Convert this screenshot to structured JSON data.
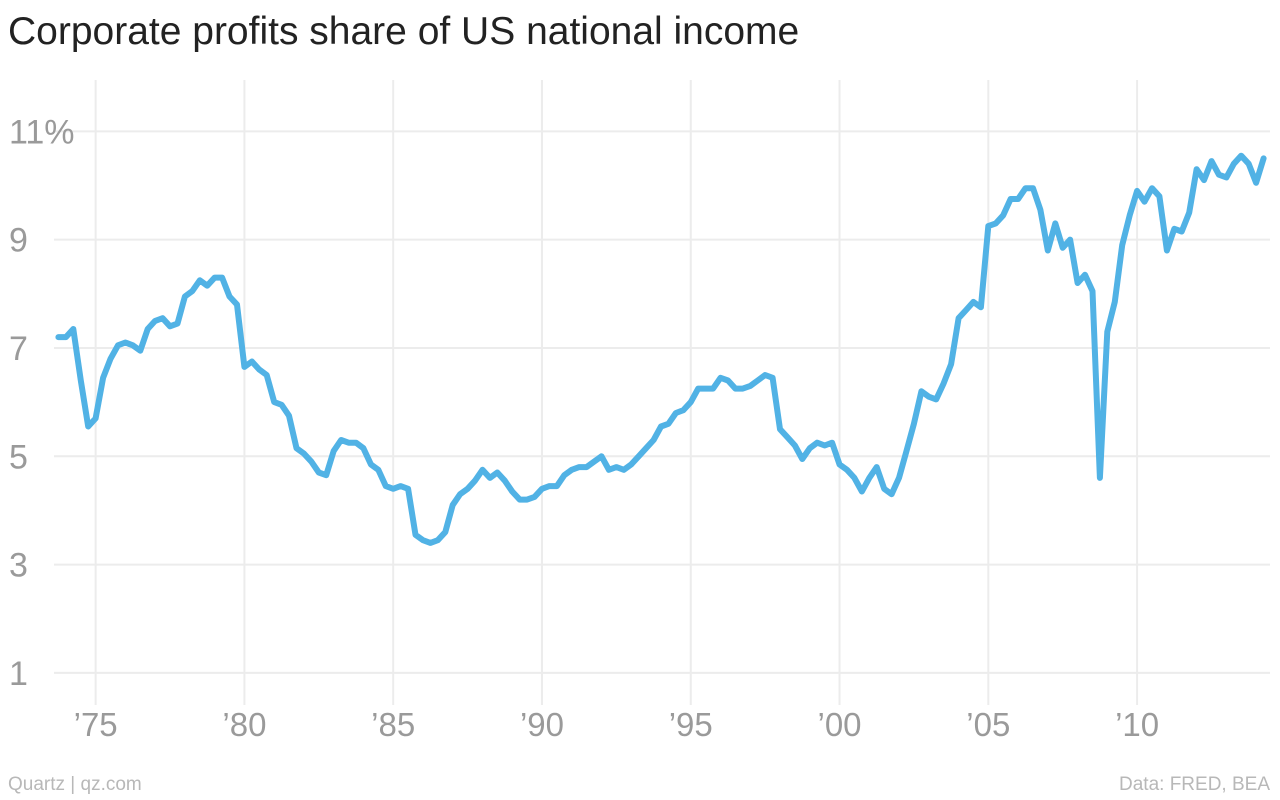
{
  "title": "Corporate profits share of US national income",
  "footer": {
    "source_left": "Quartz | qz.com",
    "source_right": "Data: FRED, BEA"
  },
  "chart_data": {
    "type": "line",
    "title": "Corporate profits share of US national income",
    "xlabel": "",
    "ylabel": "",
    "xlim": [
      1973.5,
      2014.5
    ],
    "ylim": [
      0.5,
      11.8
    ],
    "y_ticks": [
      11,
      9,
      7,
      5,
      3,
      1
    ],
    "y_tick_labels": [
      "11%",
      "9",
      "7",
      "5",
      "3",
      "1"
    ],
    "x_ticks": [
      1975,
      1980,
      1985,
      1990,
      1995,
      2000,
      2005,
      2010
    ],
    "x_tick_labels": [
      "’75",
      "’80",
      "’85",
      "’90",
      "’95",
      "’00",
      "’05",
      "’10"
    ],
    "grid": true,
    "line_color": "#51b2e5",
    "grid_color": "#ececec",
    "series": [
      {
        "x": [
          1973.75,
          1974.0,
          1974.25,
          1974.5,
          1974.75,
          1975.0,
          1975.25,
          1975.5,
          1975.75,
          1976.0,
          1976.25,
          1976.5,
          1976.75,
          1977.0,
          1977.25,
          1977.5,
          1977.75,
          1978.0,
          1978.25,
          1978.5,
          1978.75,
          1979.0,
          1979.25,
          1979.5,
          1979.75,
          1980.0,
          1980.25,
          1980.5,
          1980.75,
          1981.0,
          1981.25,
          1981.5,
          1981.75,
          1982.0,
          1982.25,
          1982.5,
          1982.75,
          1983.0,
          1983.25,
          1983.5,
          1983.75,
          1984.0,
          1984.25,
          1984.5,
          1984.75,
          1985.0,
          1985.25,
          1985.5,
          1985.75,
          1986.0,
          1986.25,
          1986.5,
          1986.75,
          1987.0,
          1987.25,
          1987.5,
          1987.75,
          1988.0,
          1988.25,
          1988.5,
          1988.75,
          1989.0,
          1989.25,
          1989.5,
          1989.75,
          1990.0,
          1990.25,
          1990.5,
          1990.75,
          1991.0,
          1991.25,
          1991.5,
          1991.75,
          1992.0,
          1992.25,
          1992.5,
          1992.75,
          1993.0,
          1993.25,
          1993.5,
          1993.75,
          1994.0,
          1994.25,
          1994.5,
          1994.75,
          1995.0,
          1995.25,
          1995.5,
          1995.75,
          1996.0,
          1996.25,
          1996.5,
          1996.75,
          1997.0,
          1997.25,
          1997.5,
          1997.75,
          1998.0,
          1998.25,
          1998.5,
          1998.75,
          1999.0,
          1999.25,
          1999.5,
          1999.75,
          2000.0,
          2000.25,
          2000.5,
          2000.75,
          2001.0,
          2001.25,
          2001.5,
          2001.75,
          2002.0,
          2002.25,
          2002.5,
          2002.75,
          2003.0,
          2003.25,
          2003.5,
          2003.75,
          2004.0,
          2004.25,
          2004.5,
          2004.75,
          2005.0,
          2005.25,
          2005.5,
          2005.75,
          2006.0,
          2006.25,
          2006.5,
          2006.75,
          2007.0,
          2007.25,
          2007.5,
          2007.75,
          2008.0,
          2008.25,
          2008.5,
          2008.75,
          2009.0,
          2009.25,
          2009.5,
          2009.75,
          2010.0,
          2010.25,
          2010.5,
          2010.75,
          2011.0,
          2011.25,
          2011.5,
          2011.75,
          2012.0,
          2012.25,
          2012.5,
          2012.75,
          2013.0,
          2013.25,
          2013.5,
          2013.75,
          2014.0,
          2014.25
        ],
        "values": [
          7.2,
          7.2,
          7.35,
          6.4,
          5.55,
          5.7,
          6.45,
          6.8,
          7.05,
          7.1,
          7.05,
          6.95,
          7.35,
          7.5,
          7.55,
          7.4,
          7.45,
          7.95,
          8.05,
          8.25,
          8.15,
          8.3,
          8.3,
          7.95,
          7.8,
          6.65,
          6.75,
          6.6,
          6.5,
          6.0,
          5.95,
          5.75,
          5.15,
          5.05,
          4.9,
          4.7,
          4.65,
          5.1,
          5.3,
          5.25,
          5.25,
          5.15,
          4.85,
          4.75,
          4.45,
          4.4,
          4.45,
          4.4,
          3.55,
          3.45,
          3.4,
          3.45,
          3.6,
          4.1,
          4.3,
          4.4,
          4.55,
          4.75,
          4.6,
          4.7,
          4.55,
          4.35,
          4.2,
          4.2,
          4.25,
          4.4,
          4.45,
          4.45,
          4.65,
          4.75,
          4.8,
          4.8,
          4.9,
          5.0,
          4.75,
          4.8,
          4.75,
          4.85,
          5.0,
          5.15,
          5.3,
          5.55,
          5.6,
          5.8,
          5.85,
          6.0,
          6.25,
          6.25,
          6.25,
          6.45,
          6.4,
          6.25,
          6.25,
          6.3,
          6.4,
          6.5,
          6.45,
          5.5,
          5.35,
          5.2,
          4.95,
          5.15,
          5.25,
          5.2,
          5.25,
          4.85,
          4.75,
          4.6,
          4.35,
          4.6,
          4.8,
          4.4,
          4.3,
          4.6,
          5.1,
          5.6,
          6.2,
          6.1,
          6.05,
          6.35,
          6.7,
          7.55,
          7.7,
          7.85,
          7.75,
          9.25,
          9.3,
          9.45,
          9.75,
          9.75,
          9.95,
          9.95,
          9.55,
          8.8,
          9.3,
          8.85,
          9.0,
          8.2,
          8.35,
          8.05,
          4.6,
          7.3,
          7.85,
          8.9,
          9.45,
          9.9,
          9.7,
          9.95,
          9.8,
          8.8,
          9.2,
          9.15,
          9.5,
          10.3,
          10.1,
          10.45,
          10.2,
          10.15,
          10.4,
          10.55,
          10.4,
          10.05,
          10.5
        ],
        "color": "#51b2e5"
      }
    ]
  }
}
